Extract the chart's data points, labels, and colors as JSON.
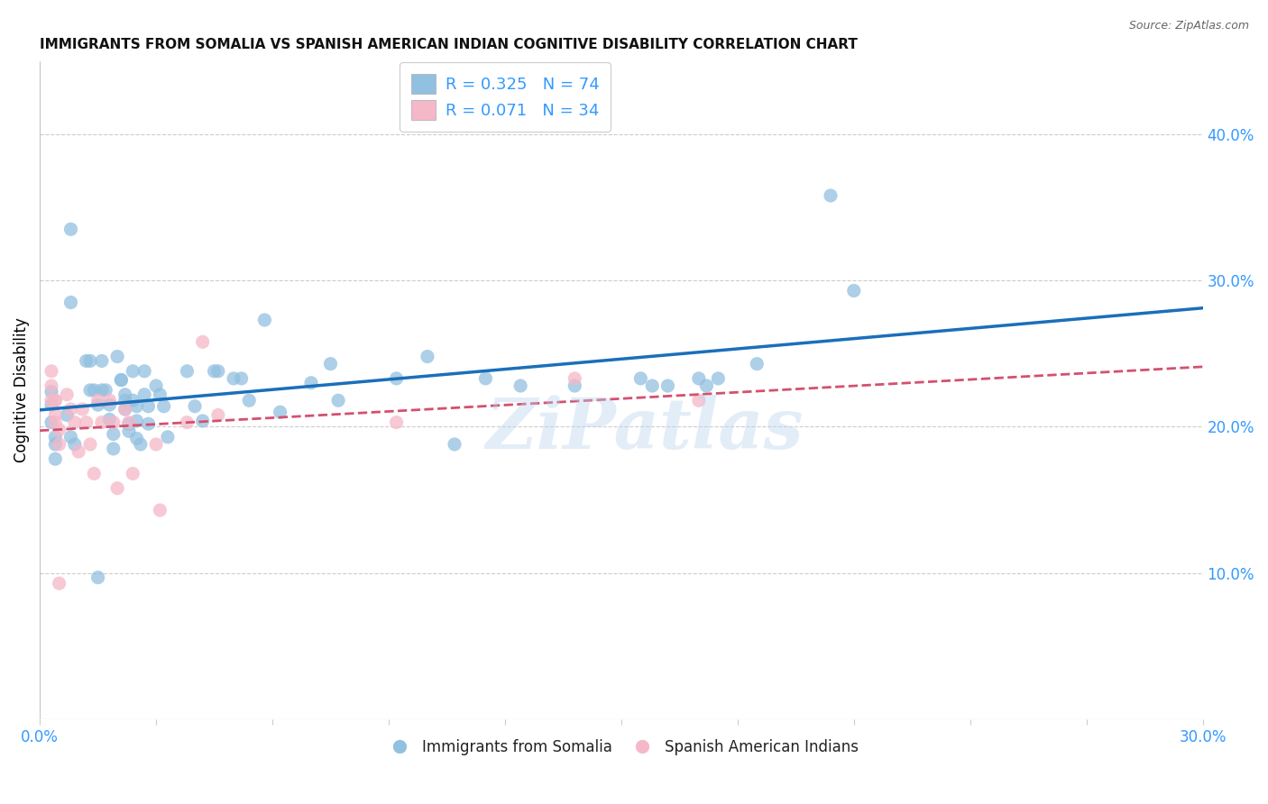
{
  "title": "IMMIGRANTS FROM SOMALIA VS SPANISH AMERICAN INDIAN COGNITIVE DISABILITY CORRELATION CHART",
  "source": "Source: ZipAtlas.com",
  "ylabel": "Cognitive Disability",
  "y_ticks": [
    0.1,
    0.2,
    0.3,
    0.4
  ],
  "y_tick_labels": [
    "10.0%",
    "20.0%",
    "30.0%",
    "40.0%"
  ],
  "xlim": [
    0.0,
    0.3
  ],
  "ylim": [
    0.0,
    0.45
  ],
  "blue_color": "#92c0e0",
  "blue_line_color": "#1a6fba",
  "pink_color": "#f5b8c8",
  "pink_line_color": "#d45070",
  "legend_blue_label_r": "R = 0.325",
  "legend_blue_label_n": "N = 74",
  "legend_pink_label_r": "R = 0.071",
  "legend_pink_label_n": "N = 34",
  "bottom_legend_blue": "Immigrants from Somalia",
  "bottom_legend_pink": "Spanish American Indians",
  "watermark": "ZiPatlas",
  "axis_tick_color": "#3399ff",
  "grid_color": "#cccccc",
  "title_fontsize": 11,
  "blue_points_x": [
    0.003,
    0.008,
    0.008,
    0.012,
    0.013,
    0.013,
    0.014,
    0.015,
    0.016,
    0.016,
    0.017,
    0.018,
    0.018,
    0.019,
    0.019,
    0.02,
    0.021,
    0.021,
    0.022,
    0.022,
    0.022,
    0.023,
    0.023,
    0.024,
    0.024,
    0.025,
    0.025,
    0.025,
    0.026,
    0.027,
    0.027,
    0.028,
    0.028,
    0.03,
    0.031,
    0.032,
    0.033,
    0.038,
    0.04,
    0.042,
    0.045,
    0.046,
    0.05,
    0.052,
    0.054,
    0.058,
    0.062,
    0.07,
    0.075,
    0.077,
    0.092,
    0.1,
    0.107,
    0.115,
    0.124,
    0.138,
    0.155,
    0.158,
    0.162,
    0.17,
    0.172,
    0.175,
    0.185,
    0.204,
    0.21,
    0.003,
    0.003,
    0.004,
    0.004,
    0.004,
    0.007,
    0.008,
    0.009,
    0.015
  ],
  "blue_points_y": [
    0.215,
    0.335,
    0.285,
    0.245,
    0.245,
    0.225,
    0.225,
    0.215,
    0.245,
    0.225,
    0.225,
    0.215,
    0.205,
    0.195,
    0.185,
    0.248,
    0.232,
    0.232,
    0.222,
    0.218,
    0.212,
    0.202,
    0.197,
    0.238,
    0.218,
    0.214,
    0.204,
    0.192,
    0.188,
    0.238,
    0.222,
    0.214,
    0.202,
    0.228,
    0.222,
    0.214,
    0.193,
    0.238,
    0.214,
    0.204,
    0.238,
    0.238,
    0.233,
    0.233,
    0.218,
    0.273,
    0.21,
    0.23,
    0.243,
    0.218,
    0.233,
    0.248,
    0.188,
    0.233,
    0.228,
    0.228,
    0.233,
    0.228,
    0.228,
    0.233,
    0.228,
    0.233,
    0.243,
    0.358,
    0.293,
    0.224,
    0.203,
    0.193,
    0.188,
    0.178,
    0.208,
    0.193,
    0.188,
    0.097
  ],
  "pink_points_x": [
    0.003,
    0.003,
    0.003,
    0.004,
    0.004,
    0.004,
    0.004,
    0.005,
    0.005,
    0.005,
    0.007,
    0.008,
    0.009,
    0.01,
    0.011,
    0.012,
    0.013,
    0.014,
    0.015,
    0.016,
    0.018,
    0.019,
    0.02,
    0.022,
    0.023,
    0.024,
    0.03,
    0.031,
    0.038,
    0.042,
    0.046,
    0.092,
    0.138,
    0.17
  ],
  "pink_points_y": [
    0.238,
    0.228,
    0.218,
    0.218,
    0.218,
    0.208,
    0.203,
    0.198,
    0.188,
    0.093,
    0.222,
    0.212,
    0.203,
    0.183,
    0.212,
    0.203,
    0.188,
    0.168,
    0.218,
    0.203,
    0.218,
    0.203,
    0.158,
    0.212,
    0.203,
    0.168,
    0.188,
    0.143,
    0.203,
    0.258,
    0.208,
    0.203,
    0.233,
    0.218
  ]
}
